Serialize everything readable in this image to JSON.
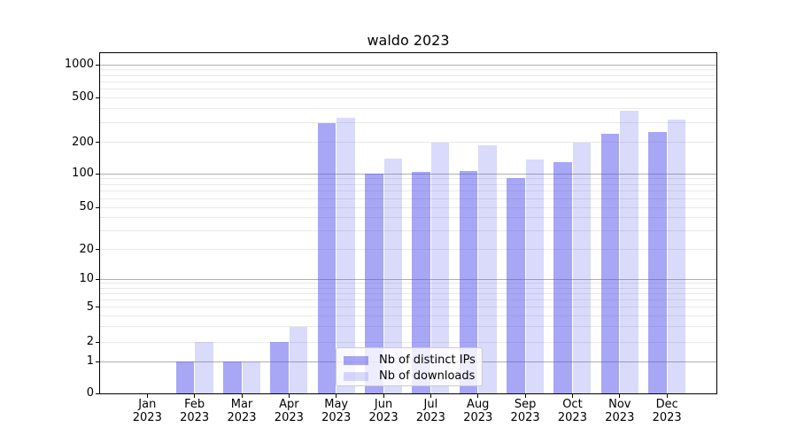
{
  "chart_data": {
    "type": "bar",
    "title": "waldo 2023",
    "categories": [
      {
        "month": "Jan",
        "year": "2023"
      },
      {
        "month": "Feb",
        "year": "2023"
      },
      {
        "month": "Mar",
        "year": "2023"
      },
      {
        "month": "Apr",
        "year": "2023"
      },
      {
        "month": "May",
        "year": "2023"
      },
      {
        "month": "Jun",
        "year": "2023"
      },
      {
        "month": "Jul",
        "year": "2023"
      },
      {
        "month": "Aug",
        "year": "2023"
      },
      {
        "month": "Sep",
        "year": "2023"
      },
      {
        "month": "Oct",
        "year": "2023"
      },
      {
        "month": "Nov",
        "year": "2023"
      },
      {
        "month": "Dec",
        "year": "2023"
      }
    ],
    "series": [
      {
        "name": "Nb of distinct IPs",
        "values": [
          0,
          1,
          1,
          2,
          295,
          100,
          105,
          107,
          91,
          128,
          240,
          245
        ]
      },
      {
        "name": "Nb of downloads",
        "values": [
          0,
          2,
          1,
          3,
          330,
          140,
          198,
          188,
          136,
          197,
          380,
          318
        ]
      }
    ],
    "yscale": "symlog",
    "ytick_labels": [
      "0",
      "1",
      "2",
      "5",
      "10",
      "20",
      "50",
      "100",
      "200",
      "500",
      "1000"
    ],
    "ytick_values": [
      0,
      1,
      2,
      5,
      10,
      20,
      50,
      100,
      200,
      500,
      1000
    ],
    "ylim": [
      0,
      1340
    ],
    "grid": true,
    "legend_position": "lower center"
  },
  "colors": {
    "bar_distinct_ips": "rgba(80,80,235,0.5)",
    "bar_downloads": "rgba(80,80,235,0.21)",
    "grid_major": "#b0b0b0",
    "grid_minor": "#e9e9e9",
    "axis_spine": "#000000",
    "legend_border": "#cccccc",
    "text": "#000000"
  }
}
